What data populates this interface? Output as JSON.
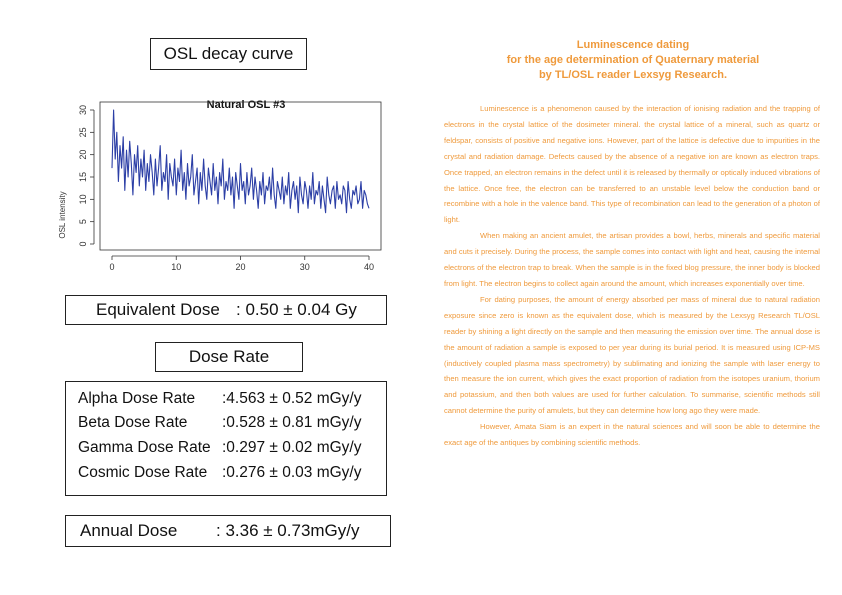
{
  "left": {
    "osl_title": "OSL decay curve",
    "equivalent_dose": {
      "label": "Equivalent Dose",
      "value": ": 0.50 ± 0.04  Gy"
    },
    "dose_rate_title": "Dose Rate",
    "dose_rates": [
      {
        "label": "Alpha Dose Rate",
        "value": ":4.563 ± 0.52  mGy/y"
      },
      {
        "label": "Beta Dose Rate",
        "value": ":0.528 ± 0.81  mGy/y"
      },
      {
        "label": "Gamma Dose Rate",
        "value": ":0.297 ± 0.02  mGy/y"
      },
      {
        "label": "Cosmic Dose Rate",
        "value": ":0.276 ± 0.03  mGy/y"
      }
    ],
    "annual_dose": {
      "label": "Annual Dose",
      "value": ": 3.36 ± 0.73mGy/y"
    }
  },
  "chart_data": {
    "type": "line",
    "title": "Natural OSL #3",
    "xlabel": "",
    "ylabel": "OSL intensity",
    "xlim": [
      0,
      40
    ],
    "ylim": [
      0,
      30
    ],
    "x_ticks": [
      "0",
      "10",
      "20",
      "30",
      "40"
    ],
    "y_ticks": [
      "0",
      "5",
      "10",
      "15",
      "20",
      "25",
      "30"
    ],
    "grid": false,
    "color": "#2c3fa6",
    "x": [
      0.0,
      0.25,
      0.5,
      0.75,
      1.0,
      1.25,
      1.5,
      1.75,
      2.0,
      2.25,
      2.5,
      2.75,
      3.0,
      3.25,
      3.5,
      3.75,
      4.0,
      4.25,
      4.5,
      4.75,
      5.0,
      5.25,
      5.5,
      5.75,
      6.0,
      6.25,
      6.5,
      6.75,
      7.0,
      7.25,
      7.5,
      7.75,
      8.0,
      8.25,
      8.5,
      8.75,
      9.0,
      9.25,
      9.5,
      9.75,
      10.0,
      10.25,
      10.5,
      10.75,
      11.0,
      11.25,
      11.5,
      11.75,
      12.0,
      12.25,
      12.5,
      12.75,
      13.0,
      13.25,
      13.5,
      13.75,
      14.0,
      14.25,
      14.5,
      14.75,
      15.0,
      15.25,
      15.5,
      15.75,
      16.0,
      16.25,
      16.5,
      16.75,
      17.0,
      17.25,
      17.5,
      17.75,
      18.0,
      18.25,
      18.5,
      18.75,
      19.0,
      19.25,
      19.5,
      19.75,
      20.0,
      20.25,
      20.5,
      20.75,
      21.0,
      21.25,
      21.5,
      21.75,
      22.0,
      22.25,
      22.5,
      22.75,
      23.0,
      23.25,
      23.5,
      23.75,
      24.0,
      24.25,
      24.5,
      24.75,
      25.0,
      25.25,
      25.5,
      25.75,
      26.0,
      26.25,
      26.5,
      26.75,
      27.0,
      27.25,
      27.5,
      27.75,
      28.0,
      28.25,
      28.5,
      28.75,
      29.0,
      29.25,
      29.5,
      29.75,
      30.0,
      30.25,
      30.5,
      30.75,
      31.0,
      31.25,
      31.5,
      31.75,
      32.0,
      32.25,
      32.5,
      32.75,
      33.0,
      33.25,
      33.5,
      33.75,
      34.0,
      34.25,
      34.5,
      34.75,
      35.0,
      35.25,
      35.5,
      35.75,
      36.0,
      36.25,
      36.5,
      36.75,
      37.0,
      37.25,
      37.5,
      37.75,
      38.0,
      38.25,
      38.5,
      38.75,
      39.0,
      39.25,
      39.5,
      39.75,
      40.0
    ],
    "y": [
      17,
      30,
      19,
      25,
      14,
      22,
      17,
      24,
      12,
      21,
      15,
      23,
      18,
      11,
      20,
      16,
      22,
      13,
      19,
      15,
      21,
      12,
      18,
      14,
      20,
      16,
      11,
      19,
      13,
      17,
      22,
      12,
      16,
      14,
      20,
      10,
      18,
      15,
      13,
      19,
      11,
      17,
      14,
      21,
      12,
      16,
      10,
      18,
      13,
      15,
      20,
      11,
      14,
      17,
      9,
      16,
      12,
      19,
      13,
      10,
      17,
      14,
      11,
      18,
      12,
      15,
      9,
      16,
      13,
      19,
      10,
      14,
      12,
      17,
      11,
      15,
      8,
      16,
      13,
      10,
      18,
      12,
      14,
      9,
      16,
      11,
      13,
      17,
      10,
      15,
      12,
      8,
      14,
      11,
      16,
      9,
      13,
      12,
      15,
      10,
      17,
      11,
      8,
      14,
      12,
      10,
      15,
      9,
      13,
      11,
      16,
      8,
      12,
      14,
      10,
      13,
      7,
      15,
      11,
      9,
      14,
      12,
      8,
      13,
      10,
      16,
      9,
      12,
      11,
      14,
      8,
      13,
      10,
      7,
      15,
      11,
      9,
      12,
      13,
      8,
      14,
      10,
      11,
      9,
      13,
      12,
      7,
      14,
      10,
      8,
      12,
      11,
      13,
      9,
      10,
      14,
      8,
      12,
      11,
      9,
      8
    ]
  },
  "right": {
    "title_lines": [
      "Luminescence dating",
      "for the age determination of Quaternary material",
      "by TL/OSL reader Lexsyg Research."
    ],
    "paragraphs": [
      "Luminescence is a phenomenon caused by the interaction of ionising radiation and the trapping of electrons in the crystal lattice of the dosimeter mineral. the crystal lattice of a mineral, such as quartz or feldspar, consists of positive and negative ions. However, part of the lattice is defective due to impurities in the crystal and radiation damage. Defects caused by the absence of a negative ion are known as electron traps. Once trapped, an electron remains in the defect until it is released by thermally or optically induced vibrations of the lattice. Once free, the electron can be transferred to an unstable level below the conduction band or recombine with a hole in the valence band. This type of recombination can lead to the generation of a photon of light.",
      "When making an ancient amulet, the artisan provides a bowl, herbs, minerals and specific material and cuts it precisely. During the process, the sample comes into contact with light and heat, causing the internal electrons of the electron trap to break. When the sample is in the fixed blog pressure, the inner body is blocked from light. The electron begins to collect again around the amount, which increases exponentially over time.",
      "For dating purposes, the amount of energy absorbed per mass of mineral due to natural radiation exposure since zero is known as the equivalent dose, which is measured by the Lexsyg Research TL/OSL reader by shining a light directly on the sample and then measuring the emission over time. The annual dose is the amount of radiation a sample is exposed to per year during its burial period. It is measured using ICP-MS (inductively coupled plasma mass spectrometry) by sublimating and ionizing the sample with laser energy to then measure the ion current, which gives the exact proportion of radiation from the isotopes uranium, thorium and potassium, and then both values are used for further calculation. To summarise, scientific methods still cannot determine the purity of amulets, but they can determine how long ago they were made.",
      "However, Amata Siam is an expert in the natural sciences and will soon be able to determine the exact age of the antiques by combining scientific methods."
    ]
  }
}
